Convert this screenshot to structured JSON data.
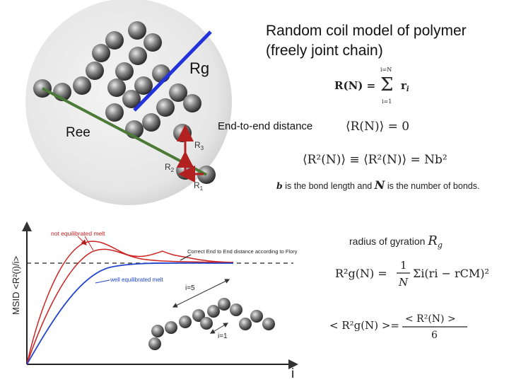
{
  "title": {
    "line1": "Random coil model of polymer",
    "line2": "(freely joint chain)"
  },
  "coil": {
    "rg_label": "Rg",
    "ree_label": "Ree",
    "r3": "R",
    "r3_sub": "3",
    "r2": "R",
    "r2_sub": "2",
    "r1": "R",
    "r1_sub": "1",
    "colors": {
      "ree_line": "#4a7a36",
      "rg_line": "#2233dd",
      "bond_arrows": "#b32020",
      "sphere": "#e6e6e6"
    }
  },
  "formulas": {
    "rn_sum_lhs": "R(N) =",
    "rn_sum_top": "i=N",
    "rn_sum_bottom": "i=1",
    "rn_sum_term": "r",
    "rn_sum_term_sub": "i",
    "end_to_end_label": "End-to-end distance",
    "mean_r": "⟨R(N)⟩ = 0",
    "mean_r2": "⟨R²(N)⟩ ≡ ⟨R²(N)⟩ = Nb²",
    "bond_note_b": "b",
    "bond_note_mid": " is the bond length and ",
    "bond_note_n": "N",
    "bond_note_end": " is the number of bonds.",
    "rg_label_text": "radius of gyration ",
    "rg_symbol": "R",
    "rg_symbol_sub": "g",
    "rg_formula_lhs": "R²g(N) =",
    "rg_frac_num": "1",
    "rg_frac_den": "N",
    "rg_formula_rhs": "Σi(ri − rCM)²",
    "rg_avg_lhs": "< R²g(N) >=",
    "rg_avg_num": "< R²(N) >",
    "rg_avg_den": "6"
  },
  "msid_plot": {
    "ylabel": "MSID <R²(i)/i>",
    "xlabel": "i",
    "not_eq_label": "not equilibrated melt",
    "well_eq_label": "well equilibrated melt",
    "flory_label": "Correct End to End distance according to Flory",
    "i5_label": "i=5",
    "i1_label": "i=1",
    "colors": {
      "not_eq": "#cc2222",
      "well_eq": "#2244cc",
      "axis": "#222222"
    }
  }
}
